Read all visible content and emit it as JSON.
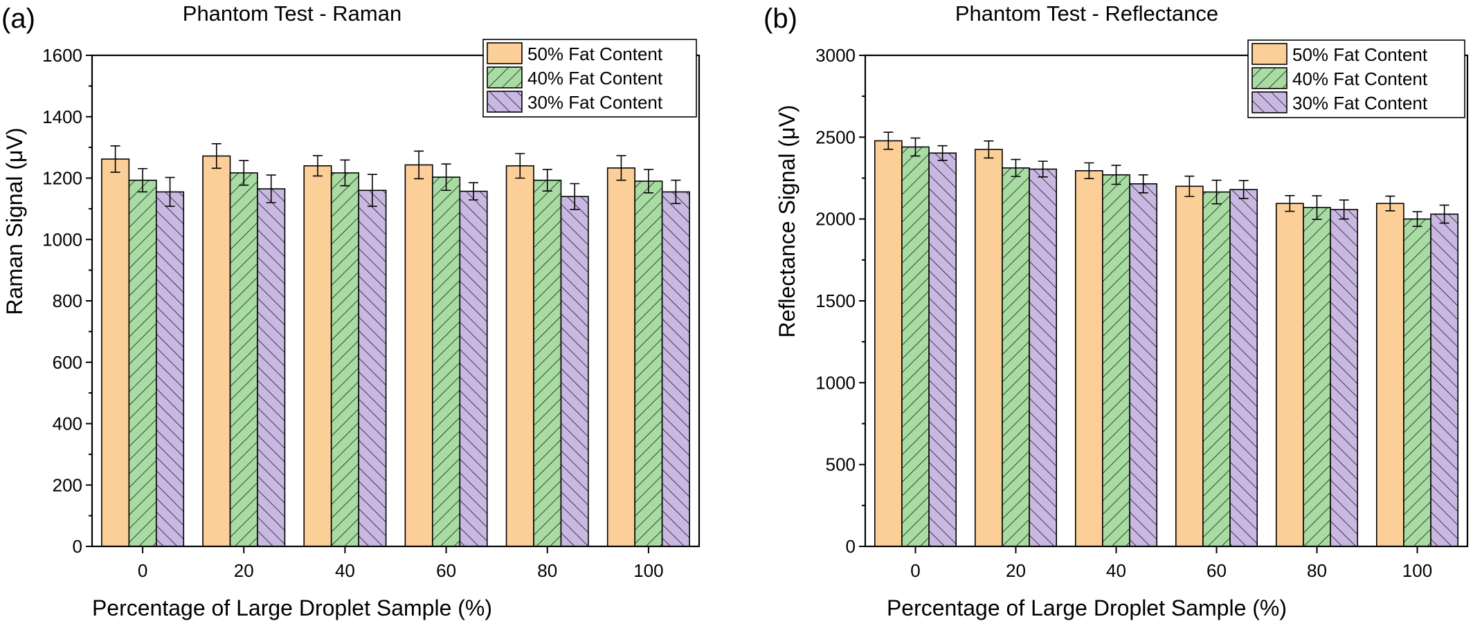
{
  "chart_data": [
    {
      "type": "bar",
      "panel_label": "(a)",
      "title": "Phantom Test - Raman",
      "xlabel": "Percentage of Large Droplet Sample (%)",
      "ylabel": "Raman Signal (μV)",
      "categories": [
        "0",
        "20",
        "40",
        "60",
        "80",
        "100"
      ],
      "ylim": [
        0,
        1600
      ],
      "yticks": [
        0,
        200,
        400,
        600,
        800,
        1000,
        1200,
        1400,
        1600
      ],
      "legend_position": "top-right",
      "series": [
        {
          "name": "50% Fat Content",
          "color": "#fdcf98",
          "pattern": "none",
          "values": [
            1262,
            1272,
            1240,
            1243,
            1240,
            1233
          ],
          "errors": [
            43,
            40,
            33,
            45,
            40,
            40
          ]
        },
        {
          "name": "40% Fat Content",
          "color": "#a8dca3",
          "pattern": "hatch-forward",
          "values": [
            1193,
            1217,
            1217,
            1203,
            1193,
            1190
          ],
          "errors": [
            38,
            40,
            42,
            43,
            35,
            38
          ]
        },
        {
          "name": "30% Fat Content",
          "color": "#c9b8e2",
          "pattern": "hatch-back",
          "values": [
            1155,
            1165,
            1160,
            1157,
            1140,
            1155
          ],
          "errors": [
            47,
            45,
            52,
            28,
            42,
            38
          ]
        }
      ]
    },
    {
      "type": "bar",
      "panel_label": "(b)",
      "title": "Phantom Test - Reflectance",
      "xlabel": "Percentage of Large Droplet Sample (%)",
      "ylabel": "Reflectance Signal (μV)",
      "categories": [
        "0",
        "20",
        "40",
        "60",
        "80",
        "100"
      ],
      "ylim": [
        0,
        3000
      ],
      "yticks": [
        0,
        500,
        1000,
        1500,
        2000,
        2500,
        3000
      ],
      "legend_position": "top-right",
      "series": [
        {
          "name": "50% Fat Content",
          "color": "#fdcf98",
          "pattern": "none",
          "values": [
            2478,
            2425,
            2295,
            2200,
            2095,
            2095
          ],
          "errors": [
            52,
            52,
            48,
            62,
            48,
            45
          ]
        },
        {
          "name": "40% Fat Content",
          "color": "#a8dca3",
          "pattern": "hatch-forward",
          "values": [
            2440,
            2312,
            2270,
            2165,
            2070,
            2000
          ],
          "errors": [
            55,
            52,
            58,
            72,
            72,
            45
          ]
        },
        {
          "name": "30% Fat Content",
          "color": "#c9b8e2",
          "pattern": "hatch-back",
          "values": [
            2403,
            2305,
            2215,
            2180,
            2058,
            2030
          ],
          "errors": [
            45,
            48,
            55,
            55,
            58,
            55
          ]
        }
      ]
    }
  ]
}
